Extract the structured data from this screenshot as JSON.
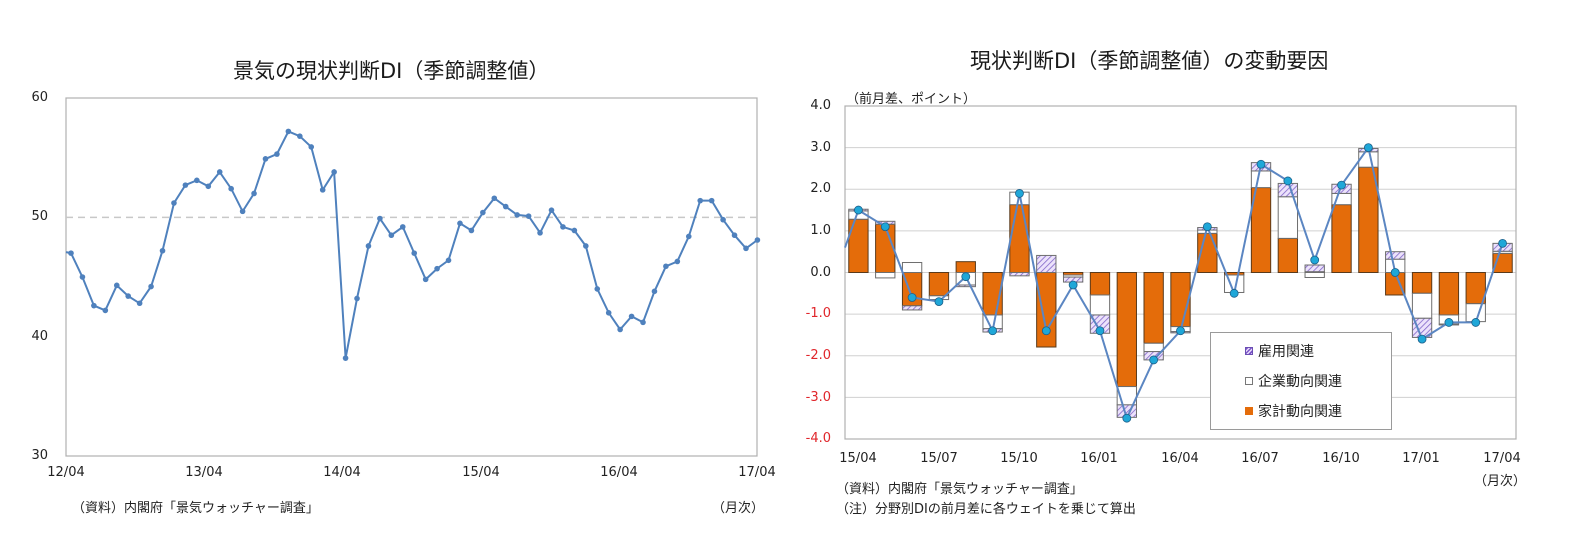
{
  "left_chart": {
    "title": "景気の現状判断DI（季節調整値）",
    "source_note": "（資料）内閣府「景気ウォッチャー調査」",
    "unit_note": "（月次）",
    "y_ticks": [
      "60",
      "50",
      "40",
      "30"
    ],
    "x_ticks": [
      "12/04",
      "13/04",
      "14/04",
      "15/04",
      "16/04",
      "17/04"
    ]
  },
  "right_chart": {
    "title": "現状判断DI（季節調整値）の変動要因",
    "y_unit_note": "（前月差、ポイント）",
    "source_note": "（資料）内閣府「景気ウォッチャー調査」",
    "footnote": "（注）分野別DIの前月差に各ウェイトを乗じて算出",
    "unit_note": "（月次）",
    "y_ticks": [
      "4.0",
      "3.0",
      "2.0",
      "1.0",
      "0.0",
      "-1.0",
      "-2.0",
      "-3.0",
      "-4.0"
    ],
    "x_ticks": [
      "15/04",
      "15/07",
      "15/10",
      "16/01",
      "16/04",
      "16/07",
      "16/10",
      "17/01",
      "17/04"
    ],
    "legend": {
      "employment": "雇用関連",
      "corporate": "企業動向関連",
      "household": "家計動向関連"
    }
  },
  "colors": {
    "line": "#4f81bd",
    "household": "#e46c0a",
    "employment_hatch": "#8064c8",
    "dot": "#1fa7d8",
    "grid": "#d0d0d0",
    "negative_tick": "#e0262b"
  },
  "chart_data": [
    {
      "type": "line",
      "title": "景気の現状判断DI（季節調整値）",
      "xlabel": "（月次）",
      "ylabel": "",
      "ylim": [
        30,
        60
      ],
      "reference_line": 50,
      "x_start": "12/04",
      "x_end": "17/04",
      "x_tick_labels": [
        "12/04",
        "13/04",
        "14/04",
        "15/04",
        "16/04",
        "17/04"
      ],
      "series": [
        {
          "name": "現状判断DI",
          "values": [
            47.0,
            45.0,
            42.6,
            42.2,
            44.3,
            43.4,
            42.8,
            44.2,
            47.2,
            51.2,
            52.7,
            53.1,
            52.6,
            53.8,
            52.4,
            50.5,
            52.0,
            54.9,
            55.3,
            57.2,
            56.8,
            55.9,
            52.3,
            53.8,
            38.2,
            43.2,
            47.6,
            49.9,
            48.5,
            49.2,
            47.0,
            44.8,
            45.7,
            46.4,
            49.5,
            48.9,
            50.4,
            51.6,
            50.9,
            50.2,
            50.1,
            48.7,
            50.6,
            49.2,
            48.9,
            47.6,
            44.0,
            42.0,
            40.6,
            41.7,
            41.2,
            43.8,
            45.9,
            46.3,
            48.4,
            51.4,
            51.4,
            49.8,
            48.5,
            47.4,
            48.1
          ]
        }
      ]
    },
    {
      "type": "bar",
      "stacked": true,
      "title": "現状判断DI（季節調整値）の変動要因",
      "ylabel": "（前月差、ポイント）",
      "xlabel": "（月次）",
      "ylim": [
        -4.0,
        4.0
      ],
      "categories": [
        "15/04",
        "15/05",
        "15/06",
        "15/07",
        "15/08",
        "15/09",
        "15/10",
        "15/11",
        "15/12",
        "16/01",
        "16/02",
        "16/03",
        "16/04",
        "16/05",
        "16/06",
        "16/07",
        "16/08",
        "16/09",
        "16/10",
        "16/11",
        "16/12",
        "17/01",
        "17/02",
        "17/03",
        "17/04"
      ],
      "series": [
        {
          "name": "家計動向関連",
          "values": [
            1.28,
            1.16,
            -0.8,
            -0.56,
            0.26,
            -1.02,
            1.63,
            -1.79,
            -0.06,
            -0.54,
            -2.74,
            -1.7,
            -1.3,
            0.94,
            -0.06,
            2.04,
            0.82,
            0.02,
            1.63,
            2.53,
            -0.54,
            -0.5,
            -1.02,
            -0.75,
            0.46
          ]
        },
        {
          "name": "企業動向関連",
          "values": [
            0.2,
            -0.13,
            0.24,
            -0.09,
            -0.3,
            -0.33,
            0.3,
            0.0,
            -0.05,
            -0.48,
            -0.44,
            -0.2,
            -0.12,
            0.08,
            -0.42,
            0.4,
            1.0,
            -0.12,
            0.27,
            0.37,
            0.32,
            -0.6,
            -0.22,
            -0.43,
            0.05
          ]
        },
        {
          "name": "雇用関連",
          "values": [
            0.04,
            0.07,
            -0.1,
            0.0,
            -0.04,
            -0.08,
            -0.08,
            0.41,
            -0.12,
            -0.44,
            -0.3,
            -0.2,
            -0.03,
            0.06,
            0.0,
            0.2,
            0.32,
            0.16,
            0.22,
            0.08,
            0.18,
            -0.46,
            -0.02,
            0.0,
            0.19
          ]
        },
        {
          "name": "現状判断DI前月差",
          "type": "line",
          "values": [
            1.5,
            1.1,
            -0.6,
            -0.7,
            -0.1,
            -1.4,
            1.9,
            -1.4,
            -0.3,
            -1.4,
            -3.5,
            -2.1,
            -1.4,
            1.1,
            -0.5,
            2.6,
            2.2,
            0.3,
            2.1,
            3.0,
            0.0,
            -1.6,
            -1.2,
            -1.2,
            0.7
          ]
        }
      ],
      "legend_position": "inside-lower-right"
    }
  ]
}
